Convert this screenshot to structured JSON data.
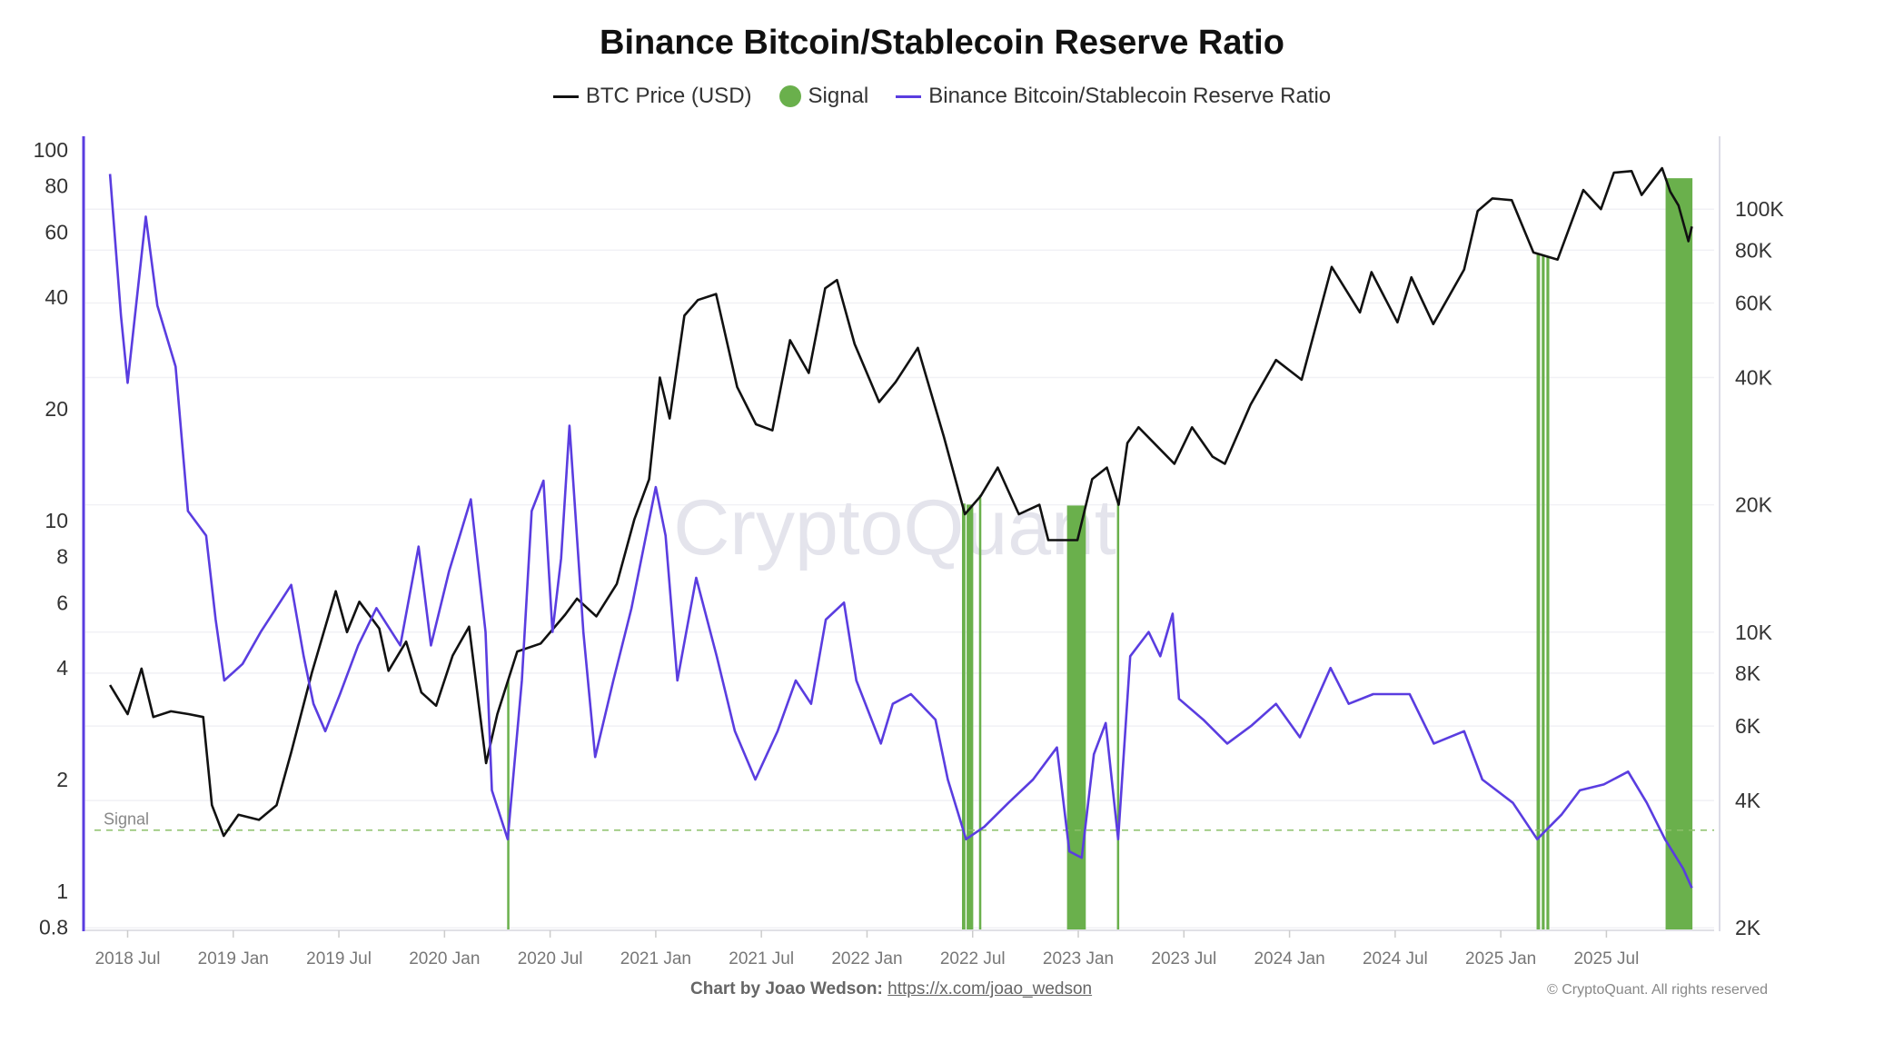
{
  "chart_data": {
    "type": "line",
    "title": "Binance Bitcoin/Stablecoin Reserve Ratio",
    "legend_placement": "top-center",
    "legend": [
      {
        "name": "BTC Price (USD)",
        "color": "#111111",
        "kind": "line"
      },
      {
        "name": "Signal",
        "color": "#6ab04c",
        "kind": "dot"
      },
      {
        "name": "Binance Bitcoin/Stablecoin Reserve Ratio",
        "color": "#5a3de0",
        "kind": "line"
      }
    ],
    "x_axis": {
      "type": "date",
      "range": [
        "2018-05-10",
        "2025-12-08"
      ],
      "tick_labels": [
        "2018 Jul",
        "2019 Jan",
        "2019 Jul",
        "2020 Jan",
        "2020 Jul",
        "2021 Jan",
        "2021 Jul",
        "2022 Jan",
        "2022 Jul",
        "2023 Jan",
        "2023 Jul",
        "2024 Jan",
        "2024 Jul",
        "2025 Jan",
        "2025 Jul"
      ],
      "tick_dates": [
        "2018-07-01",
        "2019-01-01",
        "2019-07-01",
        "2020-01-01",
        "2020-07-01",
        "2021-01-01",
        "2021-07-01",
        "2022-01-01",
        "2022-07-01",
        "2023-01-01",
        "2023-07-01",
        "2024-01-01",
        "2024-07-01",
        "2025-01-01",
        "2025-07-01"
      ]
    },
    "y_left": {
      "scale": "log",
      "range": [
        0.8,
        125
      ],
      "ticks": [
        0.8,
        1,
        2,
        4,
        6,
        8,
        10,
        20,
        40,
        60,
        80,
        100
      ],
      "tick_labels": [
        "0.8",
        "1",
        "2",
        "4",
        "6",
        "8",
        "10",
        "20",
        "40",
        "60",
        "80",
        "100"
      ],
      "color": "#5a3de0"
    },
    "y_right": {
      "scale": "log",
      "range": [
        2000,
        146000
      ],
      "ticks": [
        2000,
        4000,
        6000,
        8000,
        10000,
        20000,
        40000,
        60000,
        80000,
        100000
      ],
      "tick_labels": [
        "2K",
        "4K",
        "6K",
        "8K",
        "10K",
        "20K",
        "40K",
        "60K",
        "80K",
        "100K"
      ]
    },
    "grid": true,
    "signal_threshold": {
      "label": "Signal",
      "value": 1.46,
      "color": "#8cc06a"
    },
    "series": [
      {
        "name": "Binance Bitcoin/Stablecoin Reserve Ratio",
        "axis": "left",
        "color": "#5a3de0",
        "points": [
          [
            "2018-06-01",
            86
          ],
          [
            "2018-06-20",
            35.6
          ],
          [
            "2018-07-01",
            23.5
          ],
          [
            "2018-08-02",
            66
          ],
          [
            "2018-08-22",
            38
          ],
          [
            "2018-09-23",
            26
          ],
          [
            "2018-10-14",
            10.6
          ],
          [
            "2018-11-15",
            9.1
          ],
          [
            "2018-12-01",
            5.4
          ],
          [
            "2018-12-16",
            3.7
          ],
          [
            "2019-01-17",
            4.1
          ],
          [
            "2019-02-18",
            5.0
          ],
          [
            "2019-04-10",
            6.7
          ],
          [
            "2019-05-01",
            4.3
          ],
          [
            "2019-05-18",
            3.2
          ],
          [
            "2019-06-08",
            2.7
          ],
          [
            "2019-07-03",
            3.4
          ],
          [
            "2019-08-04",
            4.6
          ],
          [
            "2019-09-05",
            5.8
          ],
          [
            "2019-10-16",
            4.6
          ],
          [
            "2019-11-17",
            8.5
          ],
          [
            "2019-12-08",
            4.6
          ],
          [
            "2020-01-09",
            7.3
          ],
          [
            "2020-02-16",
            11.4
          ],
          [
            "2020-03-11",
            5.0
          ],
          [
            "2020-03-22",
            1.87
          ],
          [
            "2020-04-19",
            1.38
          ],
          [
            "2020-05-13",
            3.7
          ],
          [
            "2020-05-30",
            10.6
          ],
          [
            "2020-06-20",
            12.8
          ],
          [
            "2020-07-05",
            5.0
          ],
          [
            "2020-07-20",
            7.9
          ],
          [
            "2020-08-04",
            18
          ],
          [
            "2020-08-28",
            5.0
          ],
          [
            "2020-09-18",
            2.3
          ],
          [
            "2020-10-19",
            3.7
          ],
          [
            "2020-11-20",
            5.8
          ],
          [
            "2021-01-01",
            12.3
          ],
          [
            "2021-01-18",
            9.1
          ],
          [
            "2021-02-08",
            3.7
          ],
          [
            "2021-03-10",
            7.0
          ],
          [
            "2021-04-15",
            4.3
          ],
          [
            "2021-05-16",
            2.7
          ],
          [
            "2021-06-21",
            2.0
          ],
          [
            "2021-07-29",
            2.7
          ],
          [
            "2021-08-30",
            3.7
          ],
          [
            "2021-09-26",
            3.2
          ],
          [
            "2021-10-21",
            5.4
          ],
          [
            "2021-11-22",
            6.0
          ],
          [
            "2021-12-13",
            3.7
          ],
          [
            "2022-01-25",
            2.5
          ],
          [
            "2022-02-15",
            3.2
          ],
          [
            "2022-03-16",
            3.4
          ],
          [
            "2022-04-28",
            2.9
          ],
          [
            "2022-05-19",
            2.0
          ],
          [
            "2022-06-20",
            1.38
          ],
          [
            "2022-07-21",
            1.49
          ],
          [
            "2022-09-02",
            1.73
          ],
          [
            "2022-10-14",
            2.0
          ],
          [
            "2022-11-25",
            2.44
          ],
          [
            "2022-12-16",
            1.28
          ],
          [
            "2023-01-07",
            1.23
          ],
          [
            "2023-01-28",
            2.34
          ],
          [
            "2023-02-18",
            2.84
          ],
          [
            "2023-03-09",
            1.38
          ],
          [
            "2023-03-30",
            4.3
          ],
          [
            "2023-05-01",
            5.0
          ],
          [
            "2023-05-21",
            4.3
          ],
          [
            "2023-06-12",
            5.6
          ],
          [
            "2023-06-23",
            3.3
          ],
          [
            "2023-08-04",
            2.9
          ],
          [
            "2023-09-15",
            2.5
          ],
          [
            "2023-10-27",
            2.8
          ],
          [
            "2023-12-08",
            3.2
          ],
          [
            "2024-01-19",
            2.6
          ],
          [
            "2024-03-11",
            4.0
          ],
          [
            "2024-04-12",
            3.2
          ],
          [
            "2024-05-24",
            3.4
          ],
          [
            "2024-07-26",
            3.4
          ],
          [
            "2024-09-07",
            2.5
          ],
          [
            "2024-10-29",
            2.7
          ],
          [
            "2024-11-30",
            2.0
          ],
          [
            "2025-01-22",
            1.73
          ],
          [
            "2025-03-03",
            1.38
          ],
          [
            "2025-04-15",
            1.61
          ],
          [
            "2025-05-16",
            1.87
          ],
          [
            "2025-06-27",
            1.94
          ],
          [
            "2025-08-08",
            2.1
          ],
          [
            "2025-09-10",
            1.73
          ],
          [
            "2025-10-11",
            1.38
          ],
          [
            "2025-11-12",
            1.15
          ],
          [
            "2025-11-27",
            1.02
          ]
        ]
      },
      {
        "name": "BTC Price (USD)",
        "axis": "right",
        "color": "#111111",
        "points": [
          [
            "2018-06-01",
            7500
          ],
          [
            "2018-07-01",
            6400
          ],
          [
            "2018-07-25",
            8200
          ],
          [
            "2018-08-15",
            6300
          ],
          [
            "2018-09-15",
            6500
          ],
          [
            "2018-10-15",
            6400
          ],
          [
            "2018-11-10",
            6300
          ],
          [
            "2018-11-25",
            3900
          ],
          [
            "2018-12-15",
            3300
          ],
          [
            "2019-01-10",
            3700
          ],
          [
            "2019-02-15",
            3600
          ],
          [
            "2019-03-15",
            3900
          ],
          [
            "2019-04-10",
            5200
          ],
          [
            "2019-05-15",
            8000
          ],
          [
            "2019-06-26",
            12500
          ],
          [
            "2019-07-15",
            10000
          ],
          [
            "2019-08-06",
            11800
          ],
          [
            "2019-09-10",
            10200
          ],
          [
            "2019-09-26",
            8100
          ],
          [
            "2019-10-26",
            9500
          ],
          [
            "2019-11-22",
            7200
          ],
          [
            "2019-12-17",
            6700
          ],
          [
            "2020-01-15",
            8800
          ],
          [
            "2020-02-13",
            10300
          ],
          [
            "2020-03-12",
            4900
          ],
          [
            "2020-04-01",
            6400
          ],
          [
            "2020-05-05",
            9000
          ],
          [
            "2020-06-15",
            9400
          ],
          [
            "2020-07-27",
            11000
          ],
          [
            "2020-08-17",
            12000
          ],
          [
            "2020-09-20",
            10900
          ],
          [
            "2020-10-25",
            13000
          ],
          [
            "2020-11-25",
            18500
          ],
          [
            "2020-12-20",
            23000
          ],
          [
            "2021-01-08",
            40000
          ],
          [
            "2021-01-25",
            32000
          ],
          [
            "2021-02-20",
            56000
          ],
          [
            "2021-03-13",
            61000
          ],
          [
            "2021-04-14",
            63000
          ],
          [
            "2021-05-20",
            38000
          ],
          [
            "2021-06-22",
            31000
          ],
          [
            "2021-07-20",
            30000
          ],
          [
            "2021-08-20",
            49000
          ],
          [
            "2021-09-22",
            41000
          ],
          [
            "2021-10-20",
            65000
          ],
          [
            "2021-11-10",
            68000
          ],
          [
            "2021-12-10",
            48000
          ],
          [
            "2022-01-22",
            35000
          ],
          [
            "2022-02-20",
            39000
          ],
          [
            "2022-03-28",
            47000
          ],
          [
            "2022-05-12",
            29000
          ],
          [
            "2022-06-18",
            19000
          ],
          [
            "2022-07-15",
            21000
          ],
          [
            "2022-08-14",
            24500
          ],
          [
            "2022-09-20",
            19000
          ],
          [
            "2022-10-25",
            20000
          ],
          [
            "2022-11-10",
            16500
          ],
          [
            "2022-12-30",
            16500
          ],
          [
            "2023-01-25",
            23000
          ],
          [
            "2023-02-20",
            24500
          ],
          [
            "2023-03-10",
            20000
          ],
          [
            "2023-03-25",
            28000
          ],
          [
            "2023-04-14",
            30500
          ],
          [
            "2023-06-15",
            25000
          ],
          [
            "2023-07-15",
            30500
          ],
          [
            "2023-08-20",
            26000
          ],
          [
            "2023-09-11",
            25000
          ],
          [
            "2023-10-25",
            34500
          ],
          [
            "2023-12-08",
            44000
          ],
          [
            "2024-01-22",
            39500
          ],
          [
            "2024-03-13",
            73000
          ],
          [
            "2024-05-01",
            57000
          ],
          [
            "2024-05-21",
            71000
          ],
          [
            "2024-07-05",
            54000
          ],
          [
            "2024-07-29",
            69000
          ],
          [
            "2024-09-06",
            53500
          ],
          [
            "2024-10-29",
            72000
          ],
          [
            "2024-11-22",
            99000
          ],
          [
            "2024-12-17",
            106000
          ],
          [
            "2025-01-20",
            105000
          ],
          [
            "2025-02-27",
            79000
          ],
          [
            "2025-04-08",
            76000
          ],
          [
            "2025-05-22",
            111000
          ],
          [
            "2025-06-22",
            100000
          ],
          [
            "2025-07-14",
            122000
          ],
          [
            "2025-08-14",
            123000
          ],
          [
            "2025-09-01",
            108000
          ],
          [
            "2025-10-06",
            125000
          ],
          [
            "2025-10-20",
            110000
          ],
          [
            "2025-11-04",
            102000
          ],
          [
            "2025-11-21",
            84000
          ],
          [
            "2025-11-27",
            91000
          ]
        ]
      }
    ],
    "signal_periods": [
      [
        "2020-04-18",
        "2020-04-20"
      ],
      [
        "2022-06-13",
        "2022-06-19"
      ],
      [
        "2022-06-21",
        "2022-07-02"
      ],
      [
        "2022-07-12",
        "2022-07-16"
      ],
      [
        "2022-12-12",
        "2023-01-14"
      ],
      [
        "2023-03-07",
        "2023-03-10"
      ],
      [
        "2025-03-02",
        "2025-03-08"
      ],
      [
        "2025-03-11",
        "2025-03-16"
      ],
      [
        "2025-03-19",
        "2025-03-24"
      ],
      [
        "2025-10-12",
        "2025-11-28"
      ]
    ],
    "watermark": "CryptoQuant"
  },
  "footer": {
    "credit": "Chart by Joao Wedson:",
    "link": "https://x.com/joao_wedson",
    "copyright": "© CryptoQuant. All rights reserved"
  }
}
